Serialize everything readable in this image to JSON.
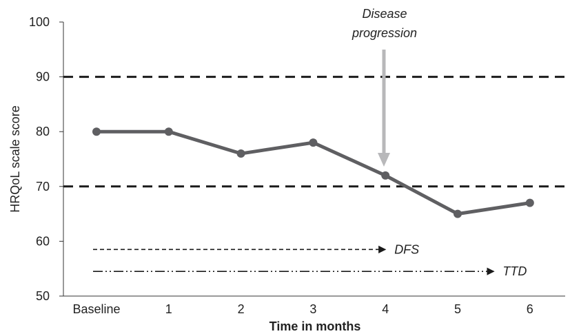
{
  "chart_data": {
    "type": "line",
    "categories": [
      "Baseline",
      "1",
      "2",
      "3",
      "4",
      "5",
      "6"
    ],
    "series": [
      {
        "values": [
          80,
          80,
          76,
          78,
          72,
          65,
          67
        ]
      }
    ],
    "xlabel": "Time in months",
    "ylabel": "HRQoL scale score",
    "ylim": [
      50,
      100
    ],
    "yticks": [
      "50",
      "60",
      "70",
      "80",
      "90",
      "100"
    ],
    "thresholds": [
      90,
      70
    ],
    "annotations": {
      "event_line1": "Disease",
      "event_line2": "progression",
      "event_x": "4",
      "dfs": {
        "label": "DFS",
        "start": "Baseline",
        "end": "4",
        "y": 58.5
      },
      "ttd": {
        "label": "TTD",
        "start": "Baseline",
        "end": "5.5",
        "y": 54.5
      }
    },
    "colors": {
      "series": "#5f5f62",
      "threshold": "#1a1a1a",
      "arrow": "#b8b8ba",
      "text": "#222222"
    },
    "grid": false,
    "legend": "none"
  }
}
